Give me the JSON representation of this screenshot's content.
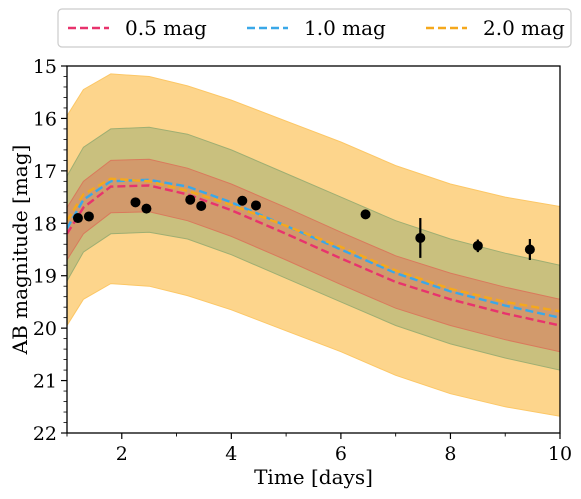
{
  "chart_data": {
    "type": "line",
    "xlabel": "Time [days]",
    "ylabel": "AB magnitude [mag]",
    "xlim": [
      1,
      10
    ],
    "ylim": [
      22,
      15
    ],
    "y_inverted": true,
    "grid": false,
    "legend_position": "top, outside plot, horizontal",
    "x_ticks": [
      2,
      4,
      6,
      8,
      10
    ],
    "y_ticks": [
      15,
      16,
      17,
      18,
      19,
      20,
      21,
      22
    ],
    "x_tick_labels": [
      "2",
      "4",
      "6",
      "8",
      "10"
    ],
    "y_tick_labels": [
      "15",
      "16",
      "17",
      "18",
      "19",
      "20",
      "21",
      "22"
    ],
    "series": [
      {
        "name": "0.5 mag",
        "color": "#e8336d",
        "band_color": "#d97a5c",
        "x": [
          1.0,
          1.3,
          1.8,
          2.5,
          3.2,
          4.0,
          5.0,
          6.0,
          7.0,
          8.0,
          9.0,
          10.0
        ],
        "y": [
          18.2,
          17.7,
          17.3,
          17.28,
          17.45,
          17.75,
          18.2,
          18.67,
          19.12,
          19.45,
          19.72,
          19.95
        ],
        "half_width": 0.5
      },
      {
        "name": "1.0 mag",
        "color": "#3aa8e8",
        "band_color": "#9fae72",
        "x": [
          1.0,
          1.3,
          1.8,
          2.5,
          3.2,
          4.0,
          5.0,
          6.0,
          7.0,
          8.0,
          9.0,
          10.0
        ],
        "y": [
          18.1,
          17.55,
          17.2,
          17.17,
          17.3,
          17.6,
          18.05,
          18.5,
          18.95,
          19.3,
          19.57,
          19.8
        ],
        "half_width": 1.0
      },
      {
        "name": "2.0 mag",
        "color": "#f5a81c",
        "band_color": "#fcc766",
        "x": [
          1.0,
          1.3,
          1.8,
          2.5,
          3.2,
          4.0,
          5.0,
          6.0,
          7.0,
          8.0,
          9.0,
          10.0
        ],
        "y": [
          17.95,
          17.45,
          17.15,
          17.2,
          17.38,
          17.65,
          18.05,
          18.45,
          18.9,
          19.25,
          19.5,
          19.68
        ],
        "half_width": 2.0
      }
    ],
    "observations": {
      "color": "#000000",
      "points": [
        {
          "x": 1.2,
          "y": 17.9,
          "err": 0.0
        },
        {
          "x": 1.4,
          "y": 17.87,
          "err": 0.08
        },
        {
          "x": 2.25,
          "y": 17.6,
          "err": 0.0
        },
        {
          "x": 2.45,
          "y": 17.72,
          "err": 0.0
        },
        {
          "x": 3.25,
          "y": 17.55,
          "err": 0.0
        },
        {
          "x": 3.45,
          "y": 17.67,
          "err": 0.0
        },
        {
          "x": 4.2,
          "y": 17.57,
          "err": 0.0
        },
        {
          "x": 4.45,
          "y": 17.66,
          "err": 0.0
        },
        {
          "x": 6.45,
          "y": 17.83,
          "err": 0.0
        },
        {
          "x": 7.45,
          "y": 18.28,
          "err": 0.38
        },
        {
          "x": 8.5,
          "y": 18.43,
          "err": 0.12
        },
        {
          "x": 9.45,
          "y": 18.5,
          "err": 0.2
        }
      ]
    }
  }
}
